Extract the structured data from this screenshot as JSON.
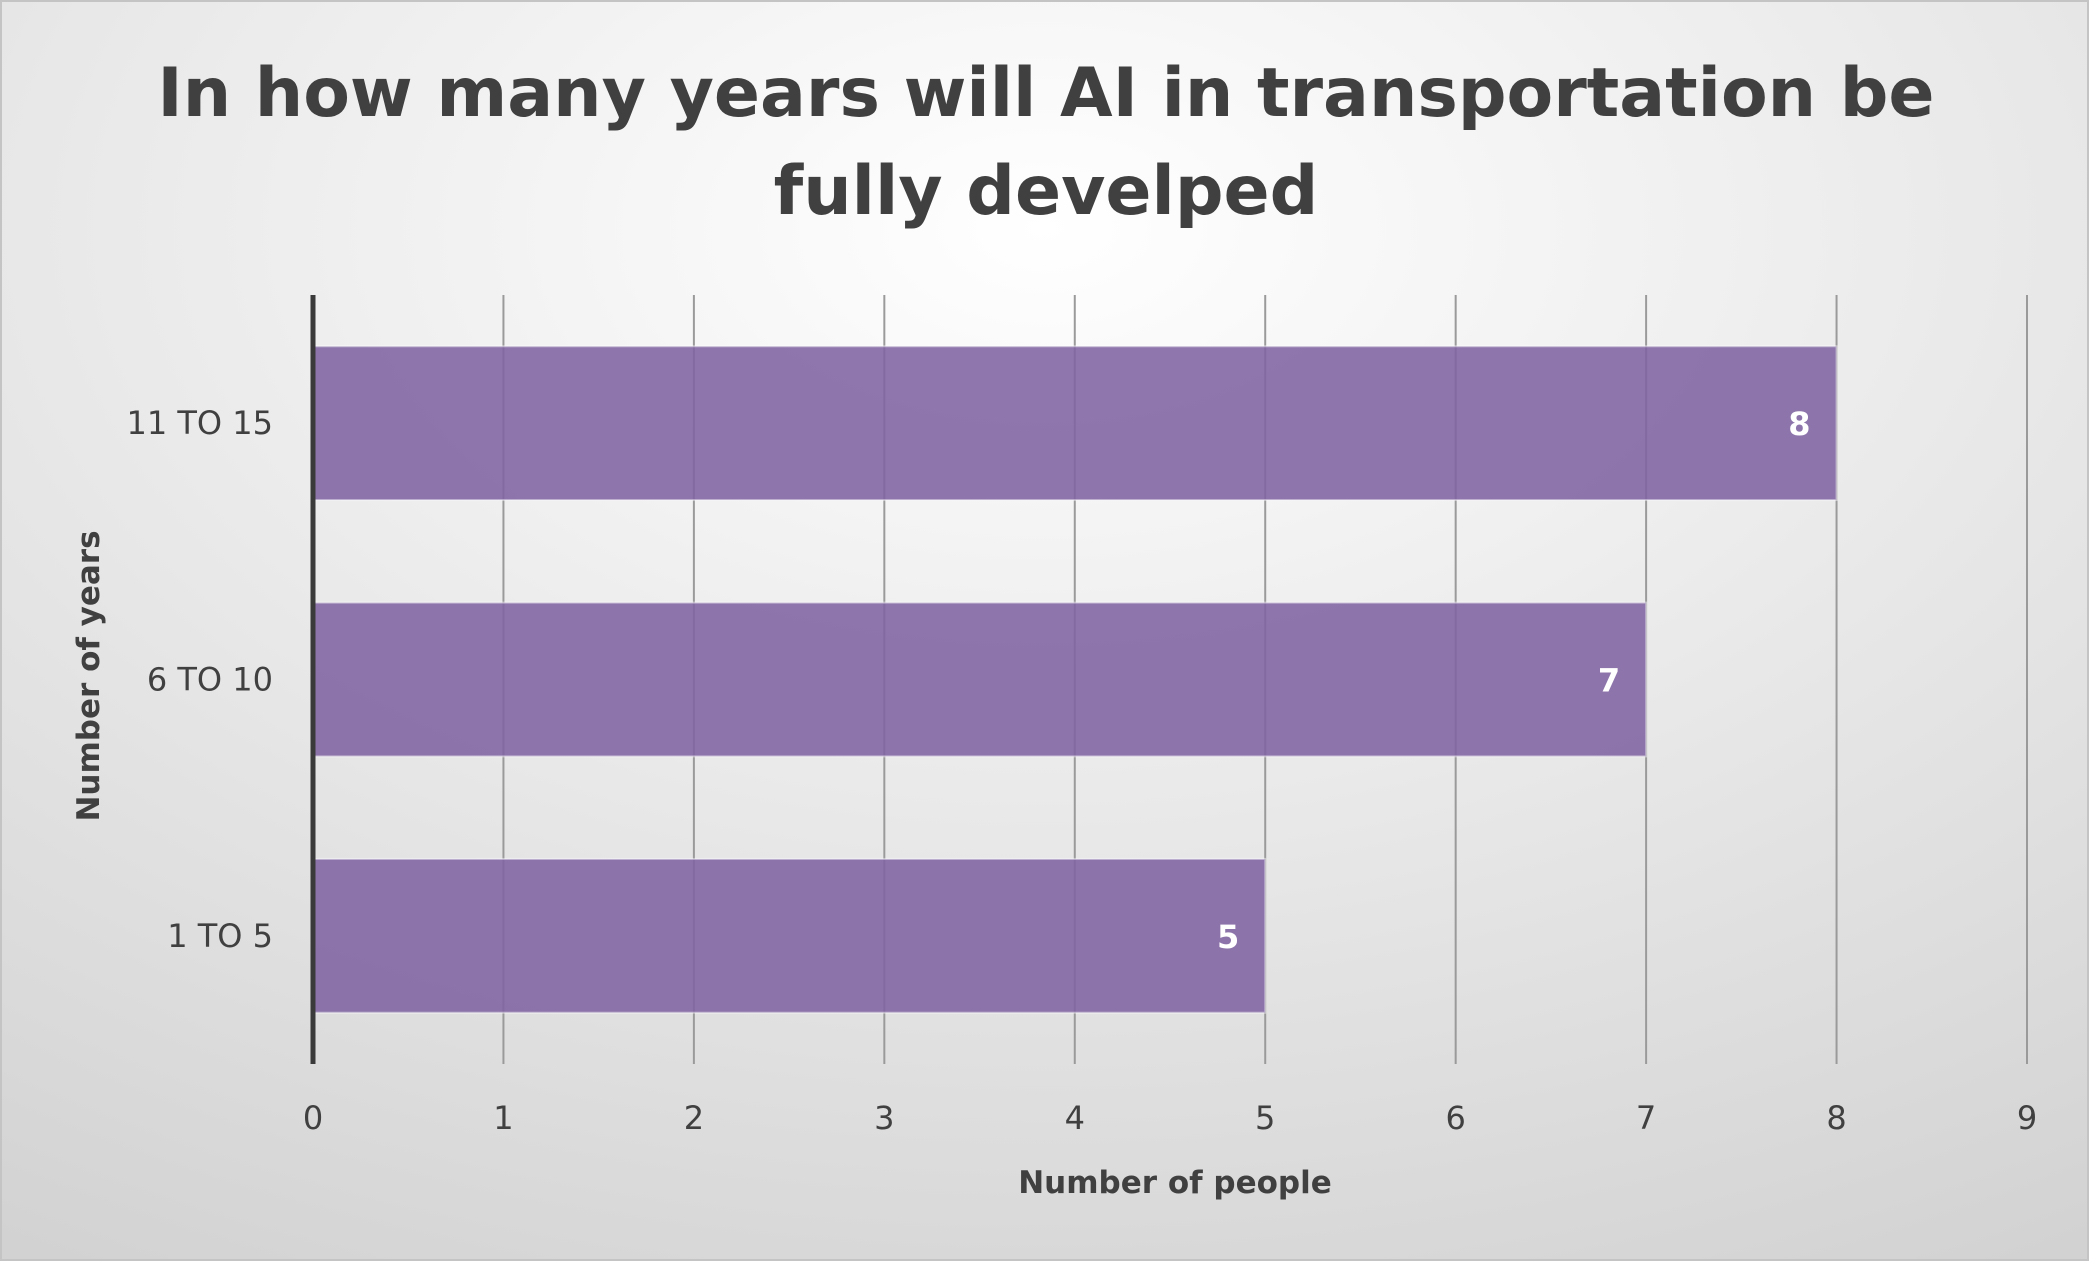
{
  "chart_data": {
    "type": "bar",
    "orientation": "horizontal",
    "title_lines": [
      "In how many years will AI in transportation be",
      "fully develped"
    ],
    "categories": [
      "11 TO 15",
      "6 TO 10",
      "1 TO 5"
    ],
    "values": [
      8,
      7,
      5
    ],
    "data_labels": [
      "8",
      "7",
      "5"
    ],
    "xlabel": "Number of people",
    "ylabel": "Number of years",
    "xlim": [
      0,
      9
    ],
    "x_ticks": [
      "0",
      "1",
      "2",
      "3",
      "4",
      "5",
      "6",
      "7",
      "8",
      "9"
    ],
    "grid": "vertical",
    "legend": "none",
    "bar_color": "#8064a2"
  }
}
